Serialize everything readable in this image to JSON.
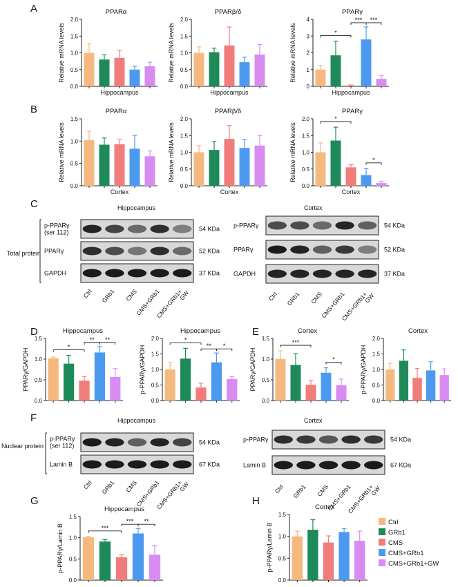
{
  "colors": {
    "Ctrl": "#f5b97f",
    "GRb1": "#1e8a5a",
    "CMS": "#f07c7c",
    "CMS+GRb1": "#4c9af0",
    "CMS+GRb1+GW": "#d88cf2"
  },
  "panels": {
    "A": "A",
    "B": "B",
    "C": "C",
    "D": "D",
    "E": "E",
    "F": "F",
    "G": "G",
    "H": "H"
  },
  "legend": [
    "Ctrl",
    "GRb1",
    "CMS",
    "CMS+GRb1",
    "CMS+GRb1+GW"
  ],
  "blots": {
    "total_label": "Total protein",
    "nuclear_label": "Nuclear protein",
    "lane_labels": [
      "Ctrl",
      "GRb1",
      "CMS",
      "CMS+GRb1",
      "CMS+GRb1+\nGW"
    ],
    "C_hippo": {
      "title": "Hippocampus",
      "rows": [
        {
          "label": "p-PPARγ\n(ser 112)",
          "kda": "54 KDa"
        },
        {
          "label": "PPARγ",
          "kda": "52 KDa"
        },
        {
          "label": "GAPDH",
          "kda": "37 KDa"
        }
      ]
    },
    "C_cortex": {
      "title": "Cortex",
      "rows": [
        {
          "label": "p-PPARγ",
          "kda": "54 KDa"
        },
        {
          "label": "PPARγ",
          "kda": "52 KDa"
        },
        {
          "label": "GAPDH",
          "kda": "37 KDa"
        }
      ]
    },
    "F_hippo": {
      "title": "Hippocampus",
      "rows": [
        {
          "label": "p-PPARγ\n(ser 112)",
          "kda": "54 KDa"
        },
        {
          "label": "Lamin B",
          "kda": "67 KDa"
        }
      ]
    },
    "F_cortex": {
      "title": "Cortex",
      "rows": [
        {
          "label": "p-PPARγ",
          "kda": "54 KDa"
        },
        {
          "label": "Lamin B",
          "kda": "67 KDa"
        }
      ]
    }
  },
  "chart_data": [
    {
      "id": "A1",
      "type": "bar",
      "title": "PPARα",
      "xlabel": "Hippocampus",
      "ylabel": "Relative mRNA levels",
      "ylim": [
        0,
        2.0
      ],
      "ticks": [
        "0.0",
        "0.5",
        "1.0",
        "1.5",
        "2.0"
      ],
      "categories": [
        "Ctrl",
        "GRb1",
        "CMS",
        "CMS+GRb1",
        "CMS+GRb1+GW"
      ],
      "values": [
        1.0,
        0.8,
        0.85,
        0.5,
        0.6
      ],
      "errors": [
        0.28,
        0.14,
        0.22,
        0.1,
        0.12
      ],
      "sig": []
    },
    {
      "id": "A2",
      "type": "bar",
      "title": "PPARβ/δ",
      "xlabel": "Hippocampus",
      "ylabel": "Relative mRNA levels",
      "ylim": [
        0,
        2.0
      ],
      "ticks": [
        "0.0",
        "0.5",
        "1.0",
        "1.5",
        "2.0"
      ],
      "categories": [
        "Ctrl",
        "GRb1",
        "CMS",
        "CMS+GRb1",
        "CMS+GRb1+GW"
      ],
      "values": [
        1.0,
        1.02,
        1.22,
        0.72,
        0.95
      ],
      "errors": [
        0.18,
        0.12,
        0.55,
        0.15,
        0.3
      ],
      "sig": []
    },
    {
      "id": "A3",
      "type": "bar",
      "title": "PPARγ",
      "xlabel": "Hippocampus",
      "ylabel": "Relative mRNA levels",
      "ylim": [
        0,
        4.0
      ],
      "ticks": [
        "0",
        "1",
        "2",
        "3",
        "4"
      ],
      "categories": [
        "Ctrl",
        "GRb1",
        "CMS",
        "CMS+GRb1",
        "CMS+GRb1+GW"
      ],
      "values": [
        1.0,
        1.85,
        0.05,
        2.8,
        0.45
      ],
      "errors": [
        0.25,
        0.85,
        0.03,
        0.75,
        0.2
      ],
      "sig": [
        {
          "from": 0,
          "to": 2,
          "label": "*",
          "level": 0
        },
        {
          "from": 2,
          "to": 3,
          "label": "***",
          "level": 1
        },
        {
          "from": 3,
          "to": 4,
          "label": "***",
          "level": 1
        }
      ]
    },
    {
      "id": "B1",
      "type": "bar",
      "title": "PPARα",
      "xlabel": "Cortex",
      "ylabel": "Relative mRNA levels",
      "ylim": [
        0,
        1.5
      ],
      "ticks": [
        "0.0",
        "0.5",
        "1.0",
        "1.5"
      ],
      "categories": [
        "Ctrl",
        "GRb1",
        "CMS",
        "CMS+GRb1",
        "CMS+GRb1+GW"
      ],
      "values": [
        1.02,
        0.92,
        0.93,
        0.83,
        0.66
      ],
      "errors": [
        0.2,
        0.15,
        0.1,
        0.3,
        0.12
      ],
      "sig": []
    },
    {
      "id": "B2",
      "type": "bar",
      "title": "PPARβ/δ",
      "xlabel": "Cortex",
      "ylabel": "Relative mRNA levels",
      "ylim": [
        0,
        2.0
      ],
      "ticks": [
        "0.0",
        "0.5",
        "1.0",
        "1.5",
        "2.0"
      ],
      "categories": [
        "Ctrl",
        "GRb1",
        "CMS",
        "CMS+GRb1",
        "CMS+GRb1+GW"
      ],
      "values": [
        1.0,
        1.07,
        1.4,
        1.13,
        1.2
      ],
      "errors": [
        0.2,
        0.25,
        0.4,
        0.25,
        0.3
      ],
      "sig": []
    },
    {
      "id": "B3",
      "type": "bar",
      "title": "PPARγ",
      "xlabel": "Cortex",
      "ylabel": "Relative mRNA levels",
      "ylim": [
        0,
        2.0
      ],
      "ticks": [
        "0.0",
        "0.5",
        "1.0",
        "1.5",
        "2.0"
      ],
      "categories": [
        "Ctrl",
        "GRb1",
        "CMS",
        "CMS+GRb1",
        "CMS+GRb1+GW"
      ],
      "values": [
        1.0,
        1.35,
        0.55,
        0.32,
        0.08
      ],
      "errors": [
        0.28,
        0.4,
        0.08,
        0.2,
        0.05
      ],
      "sig": [
        {
          "from": 0,
          "to": 2,
          "label": "*",
          "level": 0
        },
        {
          "from": 3,
          "to": 4,
          "label": "*",
          "level": 0
        }
      ]
    },
    {
      "id": "D1",
      "type": "bar",
      "title": "Hippocampus",
      "xlabel": "",
      "ylabel": "PPARγ/GAPDH",
      "ylim": [
        0,
        1.5
      ],
      "ticks": [
        "0.0",
        "0.5",
        "1.0",
        "1.5"
      ],
      "categories": [
        "Ctrl",
        "GRb1",
        "CMS",
        "CMS+GRb1",
        "CMS+GRb1+GW"
      ],
      "values": [
        1.02,
        0.89,
        0.48,
        1.16,
        0.57
      ],
      "errors": [
        0.03,
        0.2,
        0.1,
        0.14,
        0.2
      ],
      "sig": [
        {
          "from": 0,
          "to": 2,
          "label": "*",
          "level": 0
        },
        {
          "from": 2,
          "to": 3,
          "label": "**",
          "level": 1
        },
        {
          "from": 3,
          "to": 4,
          "label": "**",
          "level": 1
        }
      ]
    },
    {
      "id": "D2",
      "type": "bar",
      "title": "Hippocampus",
      "xlabel": "",
      "ylabel": "p-PPARγ/GAPDH",
      "ylim": [
        0,
        2.0
      ],
      "ticks": [
        "0.0",
        "0.5",
        "1.0",
        "1.5",
        "2.0"
      ],
      "categories": [
        "Ctrl",
        "GRb1",
        "CMS",
        "CMS+GRb1",
        "CMS+GRb1+GW"
      ],
      "values": [
        1.0,
        1.35,
        0.42,
        1.23,
        0.69
      ],
      "errors": [
        0.22,
        0.33,
        0.14,
        0.3,
        0.08
      ],
      "sig": [
        {
          "from": 0,
          "to": 2,
          "label": "*",
          "level": 0
        },
        {
          "from": 2,
          "to": 3,
          "label": "**",
          "level": 1
        },
        {
          "from": 3,
          "to": 4,
          "label": "*",
          "level": 1
        }
      ]
    },
    {
      "id": "E1",
      "type": "bar",
      "title": "Cortex",
      "xlabel": "",
      "ylabel": "PPARγ/GAPDH",
      "ylim": [
        0,
        1.5
      ],
      "ticks": [
        "0.0",
        "0.5",
        "1.0",
        "1.5"
      ],
      "categories": [
        "Ctrl",
        "GRb1",
        "CMS",
        "CMS+GRb1",
        "CMS+GRb1+GW"
      ],
      "values": [
        1.0,
        0.86,
        0.38,
        0.67,
        0.37
      ],
      "errors": [
        0.2,
        0.27,
        0.1,
        0.12,
        0.15
      ],
      "sig": [
        {
          "from": 0,
          "to": 2,
          "label": "***",
          "level": 0
        },
        {
          "from": 3,
          "to": 4,
          "label": "*",
          "level": 0
        }
      ]
    },
    {
      "id": "E2",
      "type": "bar",
      "title": "Cortex",
      "xlabel": "",
      "ylabel": "p-PPARγ/GAPDH",
      "ylim": [
        0,
        2.0
      ],
      "ticks": [
        "0.0",
        "0.5",
        "1.0",
        "1.5",
        "2.0"
      ],
      "categories": [
        "Ctrl",
        "GRb1",
        "CMS",
        "CMS+GRb1",
        "CMS+GRb1+GW"
      ],
      "values": [
        1.0,
        1.28,
        0.73,
        0.97,
        0.82
      ],
      "errors": [
        0.2,
        0.35,
        0.3,
        0.28,
        0.2
      ],
      "sig": []
    },
    {
      "id": "G",
      "type": "bar",
      "title": "Hippocampus",
      "xlabel": "",
      "ylabel": "p-PPARγ/Lamin B",
      "ylim": [
        0,
        1.5
      ],
      "ticks": [
        "0.0",
        "0.5",
        "1.0",
        "1.5"
      ],
      "categories": [
        "Ctrl",
        "GRb1",
        "CMS",
        "CMS+GRb1",
        "CMS+GRb1+GW"
      ],
      "values": [
        1.01,
        0.91,
        0.54,
        1.1,
        0.6
      ],
      "errors": [
        0.02,
        0.05,
        0.06,
        0.12,
        0.22
      ],
      "sig": [
        {
          "from": 0,
          "to": 2,
          "label": "***",
          "level": 0
        },
        {
          "from": 2,
          "to": 3,
          "label": "***",
          "level": 1
        },
        {
          "from": 3,
          "to": 4,
          "label": "**",
          "level": 1
        }
      ]
    },
    {
      "id": "H",
      "type": "bar",
      "title": "Cortex",
      "xlabel": "",
      "ylabel": "p-PPARγ/Lamin B",
      "ylim": [
        0,
        1.5
      ],
      "ticks": [
        "0.0",
        "0.5",
        "1.0",
        "1.5"
      ],
      "categories": [
        "Ctrl",
        "GRb1",
        "CMS",
        "CMS+GRb1",
        "CMS+GRb1+GW"
      ],
      "values": [
        1.0,
        1.15,
        0.86,
        1.1,
        0.9
      ],
      "errors": [
        0.12,
        0.23,
        0.15,
        0.08,
        0.22
      ],
      "sig": []
    }
  ]
}
